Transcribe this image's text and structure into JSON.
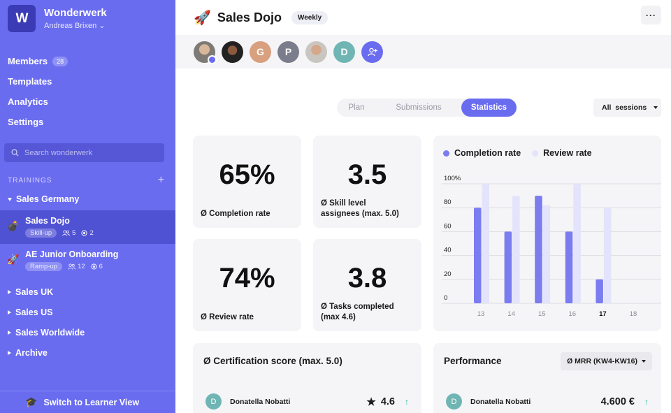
{
  "sidebar": {
    "logo": "W",
    "workspace": "Wonderwerk",
    "user": "Andreas Brixen",
    "nav": [
      {
        "label": "Members",
        "badge": "28"
      },
      {
        "label": "Templates"
      },
      {
        "label": "Analytics"
      },
      {
        "label": "Settings"
      }
    ],
    "search_placeholder": "Search wonderwerk",
    "section_label": "TRAININGS",
    "groups": [
      {
        "label": "Sales Germany",
        "expanded": true
      },
      {
        "label": "Sales UK"
      },
      {
        "label": "Sales US"
      },
      {
        "label": "Sales Worldwide"
      },
      {
        "label": "Archive"
      }
    ],
    "trainings": [
      {
        "title": "Sales Dojo",
        "tag": "Skill-up",
        "members": "5",
        "sessions": "2",
        "icon": "bomb-icon",
        "active": true
      },
      {
        "title": "AE Junior Onboarding",
        "tag": "Ramp-up",
        "members": "12",
        "sessions": "6",
        "icon": "rocket-icon",
        "active": false
      }
    ],
    "footer_label": "Switch to Learner View"
  },
  "header": {
    "title": "Sales Dojo",
    "badge": "Weekly",
    "more": "···"
  },
  "avatars": [
    {
      "type": "photo"
    },
    {
      "type": "photo"
    },
    {
      "initial": "G",
      "color": "#d8a07e"
    },
    {
      "initial": "P",
      "color": "#7b7d8c"
    },
    {
      "type": "photo"
    },
    {
      "initial": "D",
      "color": "#6fb5b3"
    },
    {
      "type": "add",
      "color": "#6a6cf0"
    }
  ],
  "tabs": [
    "Plan",
    "Submissions",
    "Statistics"
  ],
  "active_tab": "Statistics",
  "session_filter": "All  sessions",
  "stats": [
    {
      "value": "65%",
      "label": "Ø Completion rate"
    },
    {
      "value": "3.5",
      "label": "Ø Skill level\nassignees (max. 5.0)"
    },
    {
      "value": "74%",
      "label": "Ø Review rate"
    },
    {
      "value": "3.8",
      "label": "Ø Tasks completed\n(max 4.6)"
    }
  ],
  "chart_data": {
    "type": "bar",
    "categories": [
      "13",
      "14",
      "15",
      "16",
      "17",
      "18"
    ],
    "highlight_category": "17",
    "yticks": [
      "100%",
      "80",
      "60",
      "40",
      "20",
      "0"
    ],
    "ylim": [
      0,
      100
    ],
    "legend_position": "top-left",
    "series": [
      {
        "name": "Completion rate",
        "color": "#7b7cf0",
        "values": [
          80,
          60,
          90,
          60,
          20,
          null
        ]
      },
      {
        "name": "Review rate",
        "color": "#e3e3fb",
        "values": [
          100,
          90,
          82,
          100,
          80,
          null
        ]
      }
    ]
  },
  "certification": {
    "title": "Ø Certification score (max. 5.0)",
    "row": {
      "initial": "D",
      "name": "Donatella Nobatti",
      "value": "4.6"
    }
  },
  "performance": {
    "title": "Performance",
    "select": "Ø MRR (KW4-KW16)",
    "row": {
      "initial": "D",
      "name": "Donatella Nobatti",
      "value": "4.600 €"
    }
  }
}
